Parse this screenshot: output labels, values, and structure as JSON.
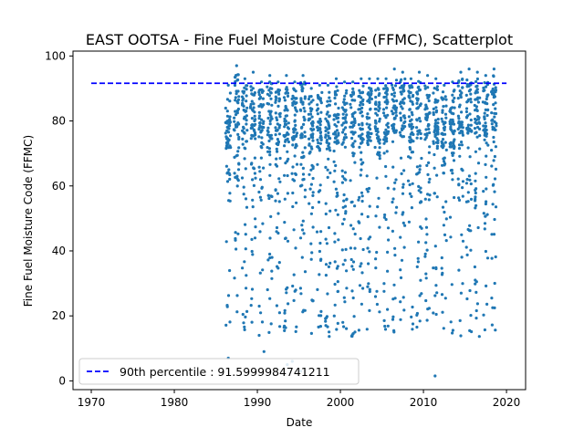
{
  "chart_data": {
    "type": "scatter",
    "title": "EAST OOTSA - Fine Fuel Moisture Code (FFMC), Scatterplot",
    "xlabel": "Date",
    "ylabel": "Fine Fuel Moisture Code (FFMC)",
    "xlim": [
      1967.8,
      2022.3
    ],
    "ylim": [
      -2.7,
      101.5
    ],
    "x_ticks": [
      1970,
      1980,
      1990,
      2000,
      2010,
      2020
    ],
    "y_ticks": [
      0,
      20,
      40,
      60,
      80,
      100
    ],
    "grid": false,
    "legend_position": "lower-left",
    "reference_line": {
      "label": "90th percentile : 91.5999984741211",
      "value": 91.5999984741211,
      "x_range": [
        1970,
        2020
      ],
      "style": "dashed",
      "color": "#0000ff"
    },
    "series": [
      {
        "color": "#1f77b4",
        "seasons": [
          1986.5,
          1987.5,
          1988.5,
          1989.5,
          1990.5,
          1991.5,
          1992.5,
          1993.5,
          1994.5,
          1995.5,
          1996.5,
          1997.5,
          1998.5,
          1999.5,
          2000.5,
          2001.5,
          2002.5,
          2003.5,
          2004.5,
          2005.5,
          2006.5,
          2007.5,
          2008.5,
          2009.5,
          2010.5,
          2011.5,
          2012.5,
          2013.5,
          2014.5,
          2015.5,
          2016.5,
          2017.5,
          2018.5
        ],
        "season_max": [
          91,
          97,
          93,
          95,
          92,
          94,
          92,
          94,
          92,
          94,
          90,
          91,
          91,
          93,
          92,
          92,
          93,
          93,
          93,
          93,
          96,
          95,
          93,
          95,
          94,
          93,
          91,
          92,
          95,
          96,
          95,
          94,
          96
        ],
        "points_per_season": 60,
        "y_min": 1.5,
        "y_max": 97,
        "outliers": [
          {
            "x": 1986.5,
            "y": 7
          },
          {
            "x": 1993.6,
            "y": 5
          },
          {
            "x": 1994.2,
            "y": 6
          },
          {
            "x": 1995.2,
            "y": 3
          },
          {
            "x": 2011.4,
            "y": 1.5
          },
          {
            "x": 1990.8,
            "y": 9
          }
        ]
      }
    ]
  }
}
